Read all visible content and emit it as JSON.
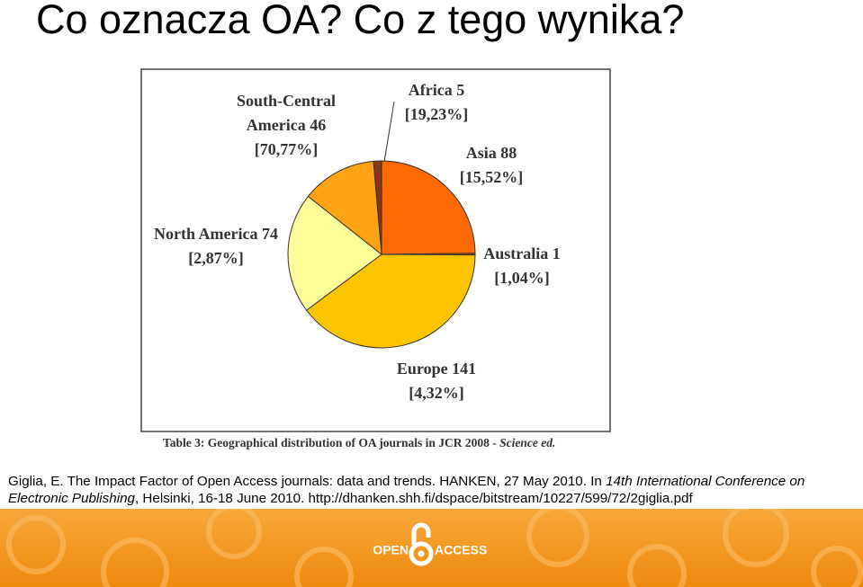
{
  "slide_title": "Co oznacza OA? Co z tego wynika?",
  "chart_data": {
    "type": "pie",
    "categories": [
      "Africa",
      "Asia",
      "Australia",
      "Europe",
      "North America",
      "South-Central America"
    ],
    "values": [
      5,
      88,
      1,
      141,
      74,
      46
    ],
    "annotations": [
      "[19,23%]",
      "[15,52%]",
      "[1,04%]",
      "[4,32%]",
      "[2,87%]",
      "[70,77%]"
    ],
    "colors": [
      "#8a3510",
      "#ff6a00",
      "#c84a00",
      "#ffc400",
      "#ffff99",
      "#ffa214"
    ],
    "caption": "Table 3: Geographical distribution of OA journals in JCR 2008 - ",
    "caption_italic": "Science ed."
  },
  "citation": {
    "part1": "Giglia, E. The Impact Factor of Open Access journals: data and trends. HANKEN, 27 May 2010. In ",
    "italic": "14th International Conference on Electronic Publishing",
    "part2": ", Helsinki, 16-18 June 2010. http://dhanken.shh.fi/dspace/bitstream/10227/599/72/2giglia.pdf"
  },
  "footer": {
    "logo_left": "OPEN",
    "logo_right": "ACCESS"
  }
}
